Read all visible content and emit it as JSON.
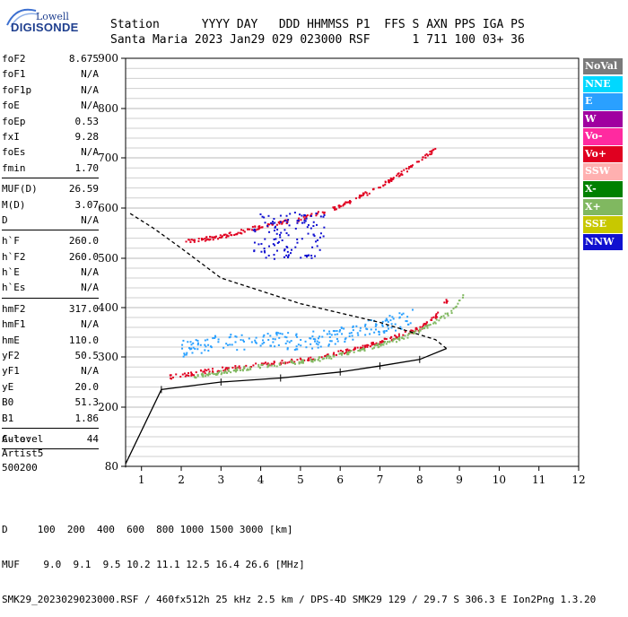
{
  "logo": {
    "line1": "Lowell",
    "line2": "DIGISONDE"
  },
  "header": {
    "labels": "Station      YYYY DAY   DDD HHMMSS P1  FFS S AXN PPS IGA PS",
    "values": "Santa Maria 2023 Jan29 029 023000 RSF      1 711 100 03+ 36"
  },
  "params": [
    [
      {
        "label": "foF2",
        "value": "8.675"
      },
      {
        "label": "foF1",
        "value": "N/A"
      },
      {
        "label": "foF1p",
        "value": "N/A"
      },
      {
        "label": "foE",
        "value": "N/A"
      },
      {
        "label": "foEp",
        "value": "0.53"
      },
      {
        "label": "fxI",
        "value": "9.28"
      },
      {
        "label": "foEs",
        "value": "N/A"
      },
      {
        "label": "fmin",
        "value": "1.70"
      }
    ],
    [
      {
        "label": "MUF(D)",
        "value": "26.59"
      },
      {
        "label": "M(D)",
        "value": "3.07"
      },
      {
        "label": "D",
        "value": "N/A"
      }
    ],
    [
      {
        "label": "h`F",
        "value": "260.0"
      },
      {
        "label": "h`F2",
        "value": "260.0"
      },
      {
        "label": "h`E",
        "value": "N/A"
      },
      {
        "label": "h`Es",
        "value": "N/A"
      }
    ],
    [
      {
        "label": "hmF2",
        "value": "317.0"
      },
      {
        "label": "hmF1",
        "value": "N/A"
      },
      {
        "label": "hmE",
        "value": "110.0"
      },
      {
        "label": "yF2",
        "value": "50.5"
      },
      {
        "label": "yF1",
        "value": "N/A"
      },
      {
        "label": "yE",
        "value": "20.0"
      },
      {
        "label": "B0",
        "value": "51.3"
      },
      {
        "label": "B1",
        "value": "1.86"
      }
    ],
    [
      {
        "label": "C-level",
        "value": "44"
      }
    ]
  ],
  "auto": {
    "line1": "Auto:",
    "line2": "Artist5",
    "line3": "500200"
  },
  "legend": [
    {
      "label": "NoVal",
      "color": "#7a7a7a"
    },
    {
      "label": "NNE",
      "color": "#00d8ff"
    },
    {
      "label": "E",
      "color": "#2aa0ff"
    },
    {
      "label": "W",
      "color": "#a000a0"
    },
    {
      "label": "Vo-",
      "color": "#ff2aa0"
    },
    {
      "label": "Vo+",
      "color": "#e00020"
    },
    {
      "label": "SSW",
      "color": "#ffb0b0"
    },
    {
      "label": "X-",
      "color": "#008000"
    },
    {
      "label": "X+",
      "color": "#80b860"
    },
    {
      "label": "SSE",
      "color": "#c8c800"
    },
    {
      "label": "NNW",
      "color": "#1010d0"
    }
  ],
  "footer": {
    "d_line": "D     100  200  400  600  800 1000 1500 3000 [km]",
    "muf_line": "MUF    9.0  9.1  9.5 10.2 11.1 12.5 16.4 26.6 [MHz]",
    "file_line": "SMK29_2023029023000.RSF / 460fx512h 25 kHz 2.5 km / DPS-4D SMK29 129 / 29.7 S 306.3 E Ion2Png 1.3.20"
  },
  "chart_data": {
    "type": "scatter",
    "title": "",
    "xlabel": "",
    "ylabel": "",
    "xlim": [
      0.6,
      12
    ],
    "ylim": [
      80,
      900
    ],
    "xticks": [
      "1",
      "2",
      "3",
      "4",
      "5",
      "6",
      "7",
      "8",
      "9",
      "10",
      "11",
      "12"
    ],
    "yticks": [
      "80",
      "200",
      "300",
      "400",
      "500",
      "600",
      "700",
      "800",
      "900"
    ],
    "grid": true,
    "legend_position": "right",
    "series": [
      {
        "name": "Vo+",
        "x": [
          1.7,
          2.5,
          3.5,
          4.5,
          5.5,
          6.5,
          7.3,
          8.0,
          8.4,
          8.7
        ],
        "y": [
          262,
          272,
          282,
          291,
          302,
          320,
          340,
          360,
          385,
          420
        ]
      },
      {
        "name": "X+",
        "x": [
          2.3,
          3.5,
          4.5,
          5.5,
          6.5,
          7.5,
          8.3,
          8.8,
          9.1
        ],
        "y": [
          262,
          278,
          288,
          298,
          315,
          338,
          368,
          395,
          430
        ]
      },
      {
        "name": "E",
        "x": [
          2.0,
          3.0,
          4.0,
          5.0,
          6.0,
          7.0,
          7.8
        ],
        "y": [
          318,
          330,
          335,
          333,
          345,
          365,
          380
        ]
      },
      {
        "name": "Vo+ (2nd hop)",
        "x": [
          2.1,
          3.0,
          4.0,
          5.0,
          6.0,
          7.0,
          7.8,
          8.4
        ],
        "y": [
          535,
          545,
          565,
          580,
          605,
          645,
          685,
          720
        ]
      },
      {
        "name": "NNW",
        "x": [
          3.8,
          4.5,
          5.0,
          5.6
        ],
        "y": [
          500,
          520,
          560,
          590
        ]
      },
      {
        "name": "profile",
        "x": [
          0.6,
          1.5,
          3.0,
          4.5,
          6.0,
          7.0,
          8.0,
          8.675,
          8.4,
          7.0,
          5.0,
          3.0,
          2.0,
          1.3,
          0.7
        ],
        "y": [
          85,
          235,
          250,
          258,
          270,
          282,
          295,
          317,
          335,
          370,
          408,
          460,
          520,
          560,
          590
        ]
      }
    ]
  }
}
